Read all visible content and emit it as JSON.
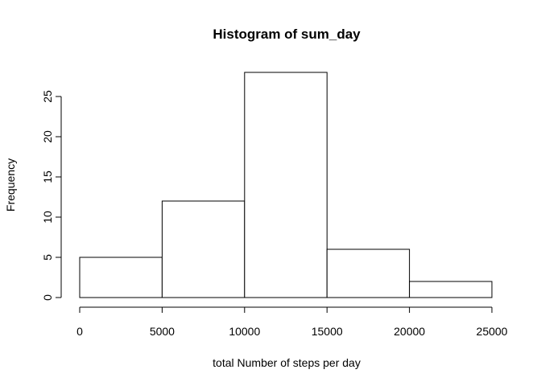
{
  "chart_data": {
    "type": "bar",
    "title": "Histogram of sum_day",
    "xlabel": "total Number of steps per day",
    "ylabel": "Frequency",
    "bins": [
      {
        "start": 0,
        "end": 5000,
        "count": 5
      },
      {
        "start": 5000,
        "end": 10000,
        "count": 12
      },
      {
        "start": 10000,
        "end": 15000,
        "count": 28
      },
      {
        "start": 15000,
        "end": 20000,
        "count": 6
      },
      {
        "start": 20000,
        "end": 25000,
        "count": 2
      }
    ],
    "xlim": [
      0,
      25000
    ],
    "ylim": [
      0,
      28
    ],
    "x_ticks": [
      0,
      5000,
      10000,
      15000,
      20000,
      25000
    ],
    "y_ticks": [
      0,
      5,
      10,
      15,
      20,
      25
    ],
    "grid": false,
    "bar_fill": "#ffffff",
    "bar_stroke": "#000000"
  }
}
